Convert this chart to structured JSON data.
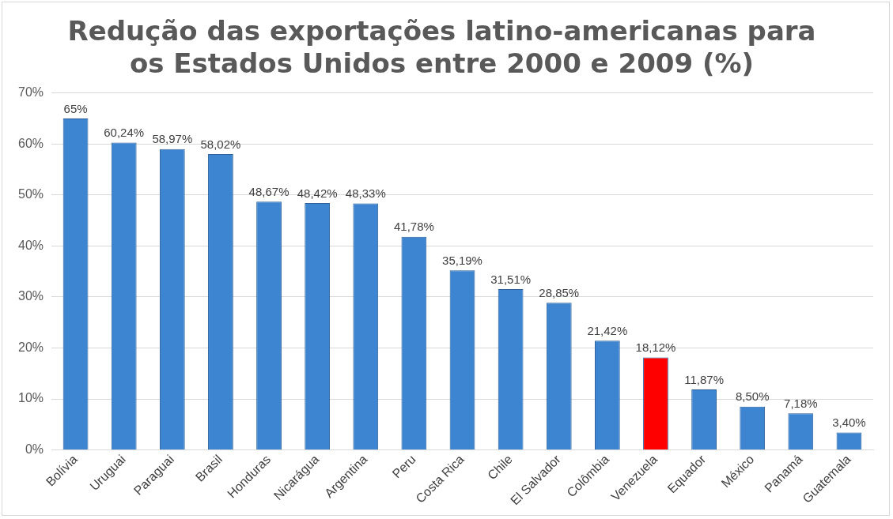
{
  "chart_data": {
    "type": "bar",
    "title": [
      "Redução das exportações latino-americanas para",
      "os Estados Unidos entre 2000 e 2009 (%)"
    ],
    "categories": [
      "Bolívia",
      "Uruguai",
      "Paraguai",
      "Brasil",
      "Honduras",
      "Nicarágua",
      "Argentina",
      "Peru",
      "Costa Rica",
      "Chile",
      "El Salvador",
      "Colômbia",
      "Venezuela",
      "Equador",
      "México",
      "Panamá",
      "Guatemala"
    ],
    "values": [
      65,
      60.24,
      58.97,
      58.02,
      48.67,
      48.42,
      48.33,
      41.78,
      35.19,
      31.51,
      28.85,
      21.42,
      18.12,
      11.87,
      8.5,
      7.18,
      3.4
    ],
    "value_labels": [
      "65%",
      "60,24%",
      "58,97%",
      "58,02%",
      "48,67%",
      "48,42%",
      "48,33%",
      "41,78%",
      "35,19%",
      "31,51%",
      "28,85%",
      "21,42%",
      "18,12%",
      "11,87%",
      "8,50%",
      "7,18%",
      "3,40%"
    ],
    "colors": [
      "#3d85d0",
      "#3d85d0",
      "#3d85d0",
      "#3d85d0",
      "#3d85d0",
      "#3d85d0",
      "#3d85d0",
      "#3d85d0",
      "#3d85d0",
      "#3d85d0",
      "#3d85d0",
      "#3d85d0",
      "#ff0000",
      "#3d85d0",
      "#3d85d0",
      "#3d85d0",
      "#3d85d0"
    ],
    "ylim": [
      0,
      70
    ],
    "yticks": [
      {
        "value": 0,
        "label": "0%"
      },
      {
        "value": 10,
        "label": "10%"
      },
      {
        "value": 20,
        "label": "20%"
      },
      {
        "value": 30,
        "label": "30%"
      },
      {
        "value": 40,
        "label": "40%"
      },
      {
        "value": 50,
        "label": "50%"
      },
      {
        "value": 60,
        "label": "60%"
      },
      {
        "value": 70,
        "label": "70%"
      }
    ],
    "grid": "y",
    "legend": false
  }
}
